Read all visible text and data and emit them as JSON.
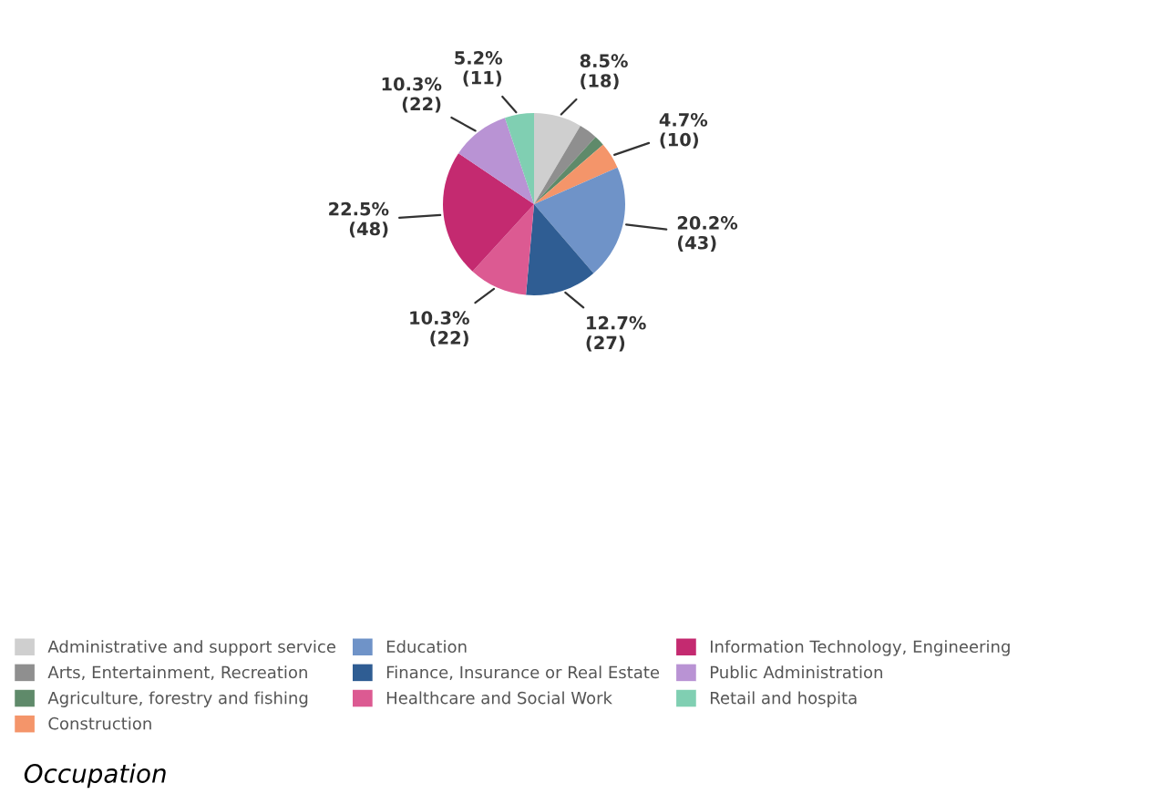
{
  "chart_data": {
    "type": "pie",
    "title": "Occupation",
    "categories": [
      "Administrative and support service",
      "Arts, Entertainment, Recreation",
      "Agriculture, forestry and fishing",
      "Construction",
      "Education",
      "Finance, Insurance or Real Estate",
      "Healthcare and Social Work",
      "Information Technology, Engineering",
      "Public Administration",
      "Retail and hospita"
    ],
    "values": [
      18,
      7,
      4,
      10,
      43,
      27,
      22,
      48,
      22,
      11
    ],
    "value_labels": [
      "8.5%\n(18)",
      null,
      null,
      "4.7%\n(10)",
      "20.2%\n(43)",
      "12.7%\n(27)",
      "10.3%\n(22)",
      "22.5%\n(48)",
      "10.3%\n(22)",
      "5.2%\n(11)"
    ],
    "colors": [
      "#cfcfcf",
      "#8f8f8f",
      "#5f8a6a",
      "#f4956a",
      "#6f93c8",
      "#2f5d93",
      "#dc5a92",
      "#c42a70",
      "#b993d4",
      "#80cfb2"
    ],
    "legend": "bottom"
  }
}
